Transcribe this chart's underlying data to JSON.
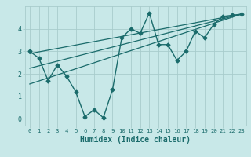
{
  "xlabel": "Humidex (Indice chaleur)",
  "x_values": [
    0,
    1,
    2,
    3,
    4,
    5,
    6,
    7,
    8,
    9,
    10,
    11,
    12,
    13,
    14,
    15,
    16,
    17,
    18,
    19,
    20,
    21,
    22,
    23
  ],
  "y_data": [
    3.0,
    2.7,
    1.7,
    2.4,
    1.9,
    1.2,
    0.1,
    0.4,
    0.05,
    1.3,
    3.6,
    4.0,
    3.8,
    4.7,
    3.3,
    3.3,
    2.6,
    3.0,
    3.9,
    3.6,
    4.2,
    4.55,
    4.6,
    4.65
  ],
  "line_color": "#1a6b6b",
  "bg_color": "#c8e8e8",
  "grid_color": "#a8cccc",
  "ylim": [
    -0.3,
    5.0
  ],
  "xlim": [
    -0.5,
    23.5
  ],
  "yticks": [
    0,
    1,
    2,
    3,
    4
  ],
  "xticks": [
    0,
    1,
    2,
    3,
    4,
    5,
    6,
    7,
    8,
    9,
    10,
    11,
    12,
    13,
    14,
    15,
    16,
    17,
    18,
    19,
    20,
    21,
    22,
    23
  ],
  "marker": "D",
  "marker_size": 2.5,
  "line_width": 1.0,
  "trend1_x": [
    0,
    23
  ],
  "trend1_y": [
    2.9,
    4.65
  ],
  "trend2_x": [
    0,
    23
  ],
  "trend2_y": [
    2.25,
    4.65
  ],
  "trend3_x": [
    0,
    23
  ],
  "trend3_y": [
    1.55,
    4.65
  ]
}
